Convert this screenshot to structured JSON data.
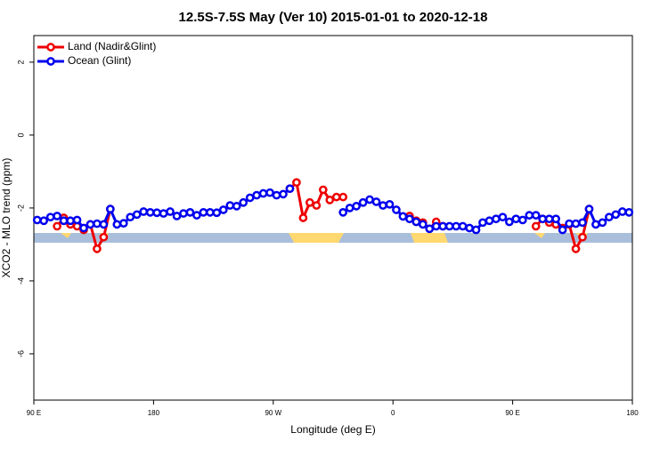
{
  "chart_data": {
    "type": "line",
    "title": "12.5S-7.5S May (Ver 10)   2015-01-01 to 2020-12-18",
    "xlabel": "Longitude (deg E)",
    "ylabel": "XCO2 - MLO trend (ppm)",
    "x": [
      92.5,
      97.5,
      102.5,
      107.5,
      112.5,
      117.5,
      122.5,
      127.5,
      132.5,
      137.5,
      142.5,
      147.5,
      152.5,
      157.5,
      162.5,
      167.5,
      172.5,
      177.5,
      182.5,
      187.5,
      192.5,
      197.5,
      202.5,
      207.5,
      212.5,
      217.5,
      222.5,
      227.5,
      232.5,
      237.5,
      242.5,
      247.5,
      252.5,
      257.5,
      262.5,
      267.5,
      272.5,
      277.5,
      282.5,
      287.5,
      292.5,
      297.5,
      302.5,
      307.5,
      312.5,
      317.5,
      322.5,
      327.5,
      332.5,
      337.5,
      342.5,
      347.5,
      352.5,
      357.5,
      362.5,
      367.5,
      372.5,
      377.5,
      382.5,
      387.5,
      392.5,
      397.5,
      402.5,
      407.5,
      412.5,
      417.5,
      422.5,
      427.5,
      432.5,
      437.5,
      442.5,
      447.5,
      452.5,
      457.5,
      462.5,
      467.5,
      472.5,
      477.5,
      482.5,
      487.5,
      492.5,
      497.5,
      502.5,
      507.5,
      512.5,
      517.5,
      522.5,
      527.5,
      532.5,
      537.5
    ],
    "series": [
      {
        "name": "Land (Nadir&Glint)",
        "color": "#ee0000",
        "values": [
          null,
          null,
          null,
          -2.5,
          -2.27,
          -2.45,
          -2.5,
          -2.6,
          -2.45,
          -3.12,
          -2.8,
          -2.03,
          null,
          null,
          null,
          null,
          null,
          null,
          null,
          null,
          null,
          null,
          null,
          null,
          null,
          null,
          null,
          null,
          null,
          null,
          null,
          null,
          null,
          null,
          null,
          null,
          null,
          null,
          -1.47,
          -1.3,
          -2.27,
          -1.85,
          -1.93,
          -1.5,
          -1.78,
          -1.7,
          -1.7,
          null,
          null,
          null,
          null,
          null,
          null,
          null,
          null,
          null,
          -2.22,
          -2.35,
          -2.4,
          -2.57,
          -2.38,
          -2.5,
          null,
          null,
          null,
          null,
          null,
          null,
          null,
          null,
          null,
          null,
          null,
          null,
          null,
          -2.5,
          -2.3,
          -2.4,
          -2.45,
          -2.55,
          -2.45,
          -3.12,
          -2.8,
          -2.03,
          null,
          null,
          null,
          null,
          null,
          null
        ]
      },
      {
        "name": "Ocean (Glint)",
        "color": "#0000ee",
        "values": [
          -2.33,
          -2.35,
          -2.25,
          -2.22,
          -2.35,
          -2.35,
          -2.33,
          -2.55,
          -2.45,
          -2.43,
          -2.45,
          -2.03,
          -2.45,
          -2.42,
          -2.25,
          -2.18,
          -2.1,
          -2.12,
          -2.13,
          -2.15,
          -2.1,
          -2.22,
          -2.15,
          -2.12,
          -2.2,
          -2.12,
          -2.12,
          -2.13,
          -2.05,
          -1.93,
          -1.95,
          -1.85,
          -1.72,
          -1.65,
          -1.6,
          -1.58,
          -1.65,
          -1.62,
          -1.47,
          null,
          null,
          null,
          null,
          null,
          null,
          null,
          -2.12,
          -2.0,
          -1.95,
          -1.85,
          -1.77,
          -1.83,
          -1.93,
          -1.9,
          -2.05,
          -2.23,
          -2.3,
          -2.38,
          -2.45,
          -2.57,
          -2.5,
          -2.5,
          -2.5,
          -2.5,
          -2.5,
          -2.55,
          -2.6,
          -2.4,
          -2.35,
          -2.3,
          -2.25,
          -2.38,
          -2.3,
          -2.33,
          -2.2,
          -2.2,
          -2.3,
          -2.3,
          -2.3,
          -2.6,
          -2.43,
          -2.43,
          -2.4,
          -2.03,
          -2.45,
          -2.4,
          -2.25,
          -2.18,
          -2.1,
          -2.12
        ]
      }
    ],
    "xlim": [
      90,
      540
    ],
    "xticks": [
      {
        "value": 90,
        "label": "90 E"
      },
      180,
      {
        "value": 270,
        "label": "90 W"
      },
      {
        "value": 360,
        "label": "0"
      },
      {
        "value": 450,
        "label": "90 E"
      },
      {
        "value": 540,
        "label": "180"
      }
    ],
    "ylim": [
      -7.27,
      2.73
    ],
    "yticks": [
      -6,
      -4,
      -2,
      0,
      2
    ],
    "legend": "top-left"
  }
}
